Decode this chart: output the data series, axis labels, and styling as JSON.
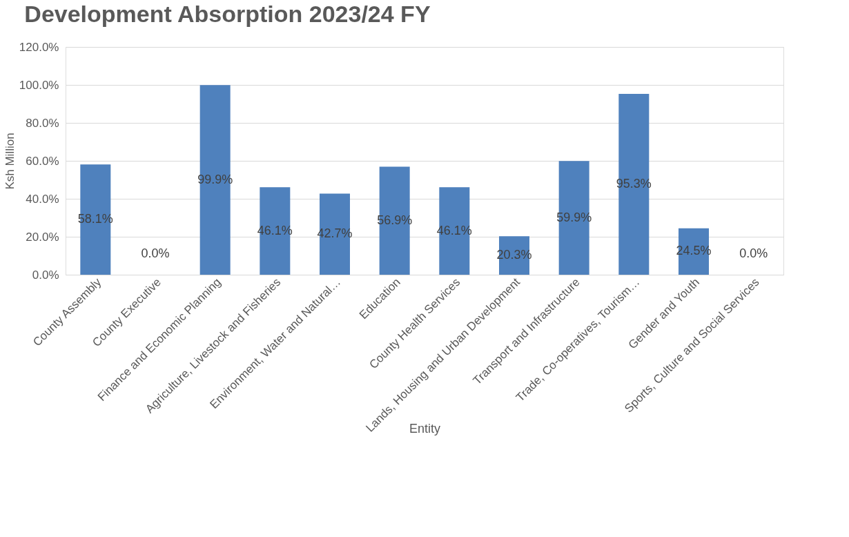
{
  "chart_data": {
    "type": "bar",
    "title": "Development Absorption 2023/24 FY",
    "xlabel": "Entity",
    "ylabel": "Ksh Million",
    "categories": [
      "County Assembly",
      "County Executive",
      "Finance and Economic Planning",
      "Agriculture, Livestock and Fisheries",
      "Environment, Water and Natural…",
      "Education",
      "County Health Services",
      "Lands, Housing and Urban Development",
      "Transport and Infrastructure",
      "Trade, Co-operatives, Tourism…",
      "Gender and Youth",
      "Sports, Culture and Social Services"
    ],
    "values": [
      58.1,
      0.0,
      99.9,
      46.1,
      42.7,
      56.9,
      46.1,
      20.3,
      59.9,
      95.3,
      24.5,
      0.0
    ],
    "value_labels": [
      "58.1%",
      "0.0%",
      "99.9%",
      "46.1%",
      "42.7%",
      "56.9%",
      "46.1%",
      "20.3%",
      "59.9%",
      "95.3%",
      "24.5%",
      "0.0%"
    ],
    "color": "#4f81bd",
    "ylim": [
      0,
      120
    ],
    "yticks": [
      {
        "value": 0,
        "label": "0.0%"
      },
      {
        "value": 20,
        "label": "20.0%"
      },
      {
        "value": 40,
        "label": "40.0%"
      },
      {
        "value": 60,
        "label": "60.0%"
      },
      {
        "value": 80,
        "label": "80.0%"
      },
      {
        "value": 100,
        "label": "100.0%"
      },
      {
        "value": 120,
        "label": "120.0%"
      }
    ],
    "grid": "y"
  }
}
